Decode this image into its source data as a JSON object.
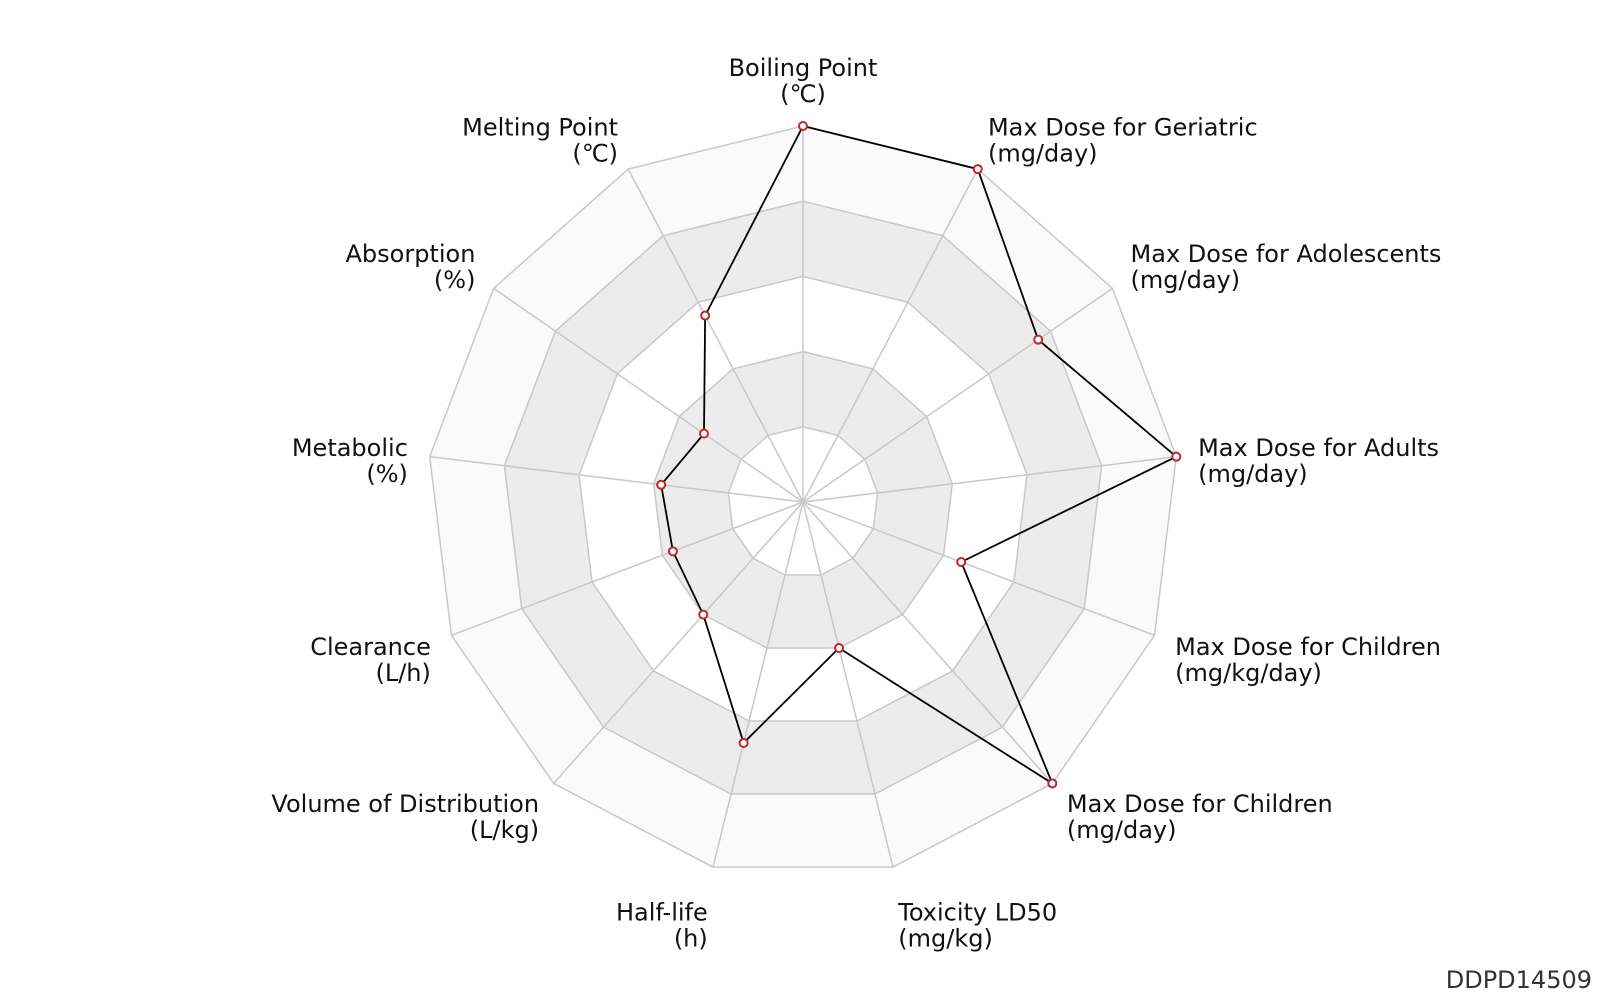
{
  "chart_data": {
    "type": "radar",
    "axis_min": 0,
    "axis_max": 1,
    "rings": 5,
    "grid": true,
    "axes": [
      {
        "name": "Boiling Point",
        "unit": "(℃)",
        "value": 1.0
      },
      {
        "name": "Max Dose for Geriatric",
        "unit": "(mg/day)",
        "value": 1.0
      },
      {
        "name": "Max Dose for Adolescents",
        "unit": "(mg/day)",
        "value": 0.76
      },
      {
        "name": "Max Dose for Adults",
        "unit": "(mg/day)",
        "value": 1.0
      },
      {
        "name": "Max Dose for Children",
        "unit": "(mg/kg/day)",
        "value": 0.45
      },
      {
        "name": "Max Dose for Children",
        "unit": "(mg/day)",
        "value": 1.0
      },
      {
        "name": "Toxicity LD50",
        "unit": "(mg/kg)",
        "value": 0.4
      },
      {
        "name": "Half-life",
        "unit": "(h)",
        "value": 0.66
      },
      {
        "name": "Volume of Distribution",
        "unit": "(L/kg)",
        "value": 0.4
      },
      {
        "name": "Clearance",
        "unit": "(L/h)",
        "value": 0.37
      },
      {
        "name": "Metabolic",
        "unit": "(%)",
        "value": 0.38
      },
      {
        "name": "Absorption",
        "unit": "(%)",
        "value": 0.32
      },
      {
        "name": "Melting Point",
        "unit": "(℃)",
        "value": 0.56
      }
    ],
    "colors": {
      "grid_line": "#c8c8c8",
      "band_light": "#fafafa",
      "band_dark": "#ececec",
      "band_white": "#ffffff",
      "series_line": "#000000",
      "marker": "#c0282d"
    }
  },
  "footer": {
    "id": "DDPD14509"
  }
}
